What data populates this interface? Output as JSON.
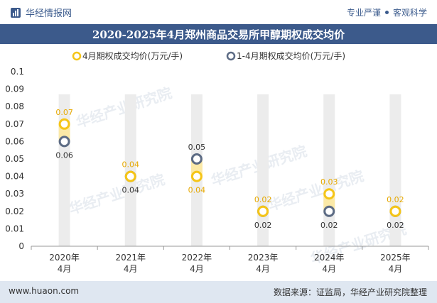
{
  "header": {
    "brand": "华经情报网",
    "slogan_left": "专业严谨",
    "slogan_right": "客观科学"
  },
  "title": "2020-2025年4月郑州商品交易所甲醇期权成交均价",
  "footer": {
    "url": "www.huaon.com",
    "source": "数据来源：证监局，华经产业研究院整理"
  },
  "watermark": "华经产业研究院",
  "colors": {
    "series1": "#f5c518",
    "series2": "#5c6b84",
    "band": "#fbe9a7",
    "bar": "#ececec",
    "header": "#3c5a8b"
  },
  "chart_data": {
    "type": "scatter",
    "categories": [
      "2020年\n4月",
      "2021年\n4月",
      "2022年\n4月",
      "2023年\n4月",
      "2024年\n4月",
      "2025年\n4月"
    ],
    "series": [
      {
        "name": "4月期权成交均价(万元/手)",
        "values": [
          0.07,
          0.04,
          0.04,
          0.02,
          0.03,
          0.02
        ],
        "labels": [
          "0.07",
          "0.04",
          "0.04",
          "0.02",
          "0.03",
          "0.02"
        ]
      },
      {
        "name": "1-4月期权成交均价(万元/手)",
        "values": [
          0.06,
          0.04,
          0.05,
          0.02,
          0.02,
          0.02
        ],
        "labels": [
          "0.06",
          "0.04",
          "0.05",
          "0.02",
          "0.02",
          "0.02"
        ]
      }
    ],
    "y_ticks": [
      "0",
      "0.01",
      "0.02",
      "0.03",
      "0.04",
      "0.05",
      "0.06",
      "0.07",
      "0.08",
      "0.09",
      "0.1"
    ],
    "ylim": [
      0,
      0.1
    ],
    "legend_position": "top-center"
  }
}
